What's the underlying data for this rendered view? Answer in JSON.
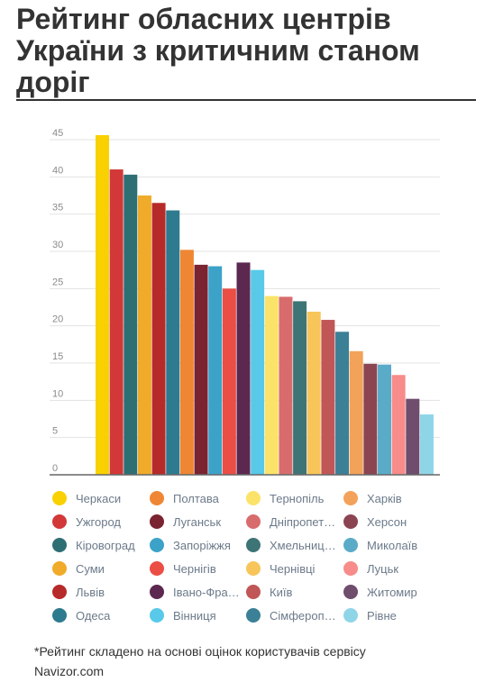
{
  "page": {
    "title": "Рейтинг обласних центрів України з критичним станом доріг",
    "footnote_line1": "*Рейтинг складено на основі оцінок користувачів сервісу",
    "footnote_line2": "Navizor.com"
  },
  "chart_data": {
    "type": "bar",
    "title": "",
    "xlabel": "",
    "ylabel": "",
    "ylim": [
      0,
      45
    ],
    "yticks": [
      0,
      5,
      10,
      15,
      20,
      25,
      30,
      35,
      40,
      45
    ],
    "grid": true,
    "legend_position": "bottom",
    "categories": [
      "Черкаси",
      "Ужгород",
      "Кіровоград",
      "Суми",
      "Львів",
      "Одеса",
      "Полтава",
      "Луганськ",
      "Запоріжжя",
      "Чернігів",
      "Івано-Фра…",
      "Вінниця",
      "Тернопіль",
      "Дніпропет…",
      "Хмельниц…",
      "Чернівці",
      "Київ",
      "Сімфероп…",
      "Харків",
      "Херсон",
      "Миколаїв",
      "Луцьк",
      "Житомир",
      "Рівне"
    ],
    "legend_labels": [
      "Черкаси",
      "Полтава",
      "Тернопіль",
      "Харків",
      "Ужгород",
      "Луганськ",
      "Дніпропет…",
      "Херсон",
      "Кіровоград",
      "Запоріжжя",
      "Хмельниц…",
      "Миколаїв",
      "Суми",
      "Чернігів",
      "Чернівці",
      "Луцьк",
      "Львів",
      "Івано-Фра…",
      "Київ",
      "Житомир",
      "Одеса",
      "Вінниця",
      "Сімфероп…",
      "Рівне"
    ],
    "values": [
      45.6,
      41.0,
      40.3,
      37.5,
      36.5,
      35.5,
      30.2,
      28.2,
      28.0,
      25.0,
      28.5,
      27.5,
      24.0,
      23.9,
      23.3,
      21.9,
      20.8,
      19.2,
      16.6,
      14.9,
      14.8,
      13.4,
      10.2,
      8.1
    ],
    "colors": [
      "#f9d100",
      "#d23838",
      "#2e6f74",
      "#f0ab2a",
      "#b72a2a",
      "#2e7a8e",
      "#ef8633",
      "#7a2331",
      "#3ca2c8",
      "#ea4e44",
      "#5c2850",
      "#58c9e8",
      "#fbe36a",
      "#d86c6c",
      "#3d7476",
      "#f8c55a",
      "#c05656",
      "#3b8096",
      "#f3a25a",
      "#8b4552",
      "#5aabc8",
      "#f78c8a",
      "#6f4d6c",
      "#8fd5e8"
    ]
  }
}
